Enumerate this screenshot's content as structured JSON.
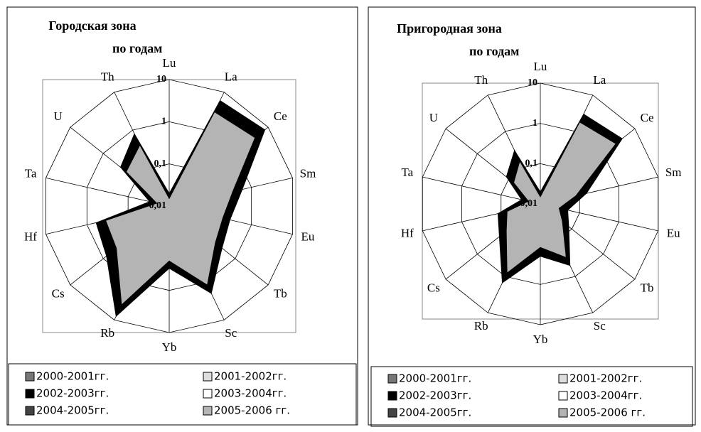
{
  "chart_data": [
    {
      "type": "radar",
      "title": [
        "Городская зона",
        "по годам"
      ],
      "categories": [
        "Lu",
        "La",
        "Ce",
        "Sm",
        "Eu",
        "Tb",
        "Sc",
        "Yb",
        "Rb",
        "Cs",
        "Hf",
        "Ta",
        "U",
        "Th"
      ],
      "log_scale": true,
      "rlim": [
        0.01,
        10
      ],
      "rticks": [
        {
          "value": 0.01,
          "label": "0,01"
        },
        {
          "value": 0.1,
          "label": "0,1"
        },
        1,
        10
      ],
      "series": [
        {
          "name": "2000-2001гг.",
          "color": "#777777",
          "values": [
            0.012,
            2.5,
            3.5,
            0.3,
            0.15,
            0.2,
            1,
            0.15,
            3.5,
            0.35,
            0.3,
            0.015,
            0.15,
            0.35
          ]
        },
        {
          "name": "2001-2002гг.",
          "color": "#dddddd",
          "values": [
            0.012,
            2.8,
            3.8,
            0.32,
            0.18,
            0.22,
            1.1,
            0.18,
            3.8,
            0.38,
            0.32,
            0.018,
            0.18,
            0.38
          ]
        },
        {
          "name": "2002-2003гг.",
          "color": "#000000",
          "values": [
            0.02,
            6,
            8,
            0.6,
            0.3,
            0.4,
            2,
            0.3,
            8,
            0.8,
            0.6,
            0.03,
            0.3,
            0.8
          ]
        },
        {
          "name": "2003-2004гг.",
          "color": "#ffffff",
          "values": [
            0.012,
            2.5,
            3.5,
            0.3,
            0.15,
            0.2,
            1,
            0.15,
            3.5,
            0.35,
            0.3,
            0.015,
            0.15,
            0.35
          ]
        },
        {
          "name": "2004-2005гг.",
          "color": "#444444",
          "values": [
            0.012,
            2.6,
            3.6,
            0.31,
            0.16,
            0.21,
            1.05,
            0.16,
            3.6,
            0.36,
            0.31,
            0.016,
            0.16,
            0.36
          ]
        },
        {
          "name": "2005-2006 гг.",
          "color": "#b4b4b4",
          "values": [
            0.015,
            3,
            4,
            0.35,
            0.2,
            0.25,
            1.2,
            0.2,
            4,
            0.4,
            0.35,
            0.02,
            0.2,
            0.4
          ]
        }
      ]
    },
    {
      "type": "radar",
      "title": [
        "Пригородная зона",
        "по годам"
      ],
      "categories": [
        "Lu",
        "La",
        "Ce",
        "Sm",
        "Eu",
        "Tb",
        "Sc",
        "Yb",
        "Rb",
        "Cs",
        "Hf",
        "Ta",
        "U",
        "Th"
      ],
      "log_scale": true,
      "rlim": [
        0.01,
        10
      ],
      "rticks": [
        {
          "value": 0.01,
          "label": "0,01"
        },
        {
          "value": 0.1,
          "label": "0,1"
        },
        1,
        10
      ],
      "series": [
        {
          "name": "2000-2001гг.",
          "color": "#777777",
          "values": [
            0.014,
            1.6,
            2.2,
            0.07,
            0.028,
            0.045,
            0.27,
            0.11,
            0.7,
            0.11,
            0.065,
            0.018,
            0.065,
            0.13
          ]
        },
        {
          "name": "2001-2002гг.",
          "color": "#dddddd",
          "values": [
            0.014,
            1.6,
            2.2,
            0.07,
            0.028,
            0.045,
            0.27,
            0.11,
            0.7,
            0.11,
            0.065,
            0.018,
            0.065,
            0.13
          ]
        },
        {
          "name": "2002-2003гг.",
          "color": "#000000",
          "values": [
            0.02,
            3,
            4,
            0.15,
            0.05,
            0.08,
            0.5,
            0.2,
            1.5,
            0.2,
            0.12,
            0.03,
            0.12,
            0.3
          ]
        },
        {
          "name": "2003-2004гг.",
          "color": "#ffffff",
          "values": [
            0.014,
            1.6,
            2.2,
            0.07,
            0.028,
            0.045,
            0.27,
            0.11,
            0.7,
            0.11,
            0.065,
            0.018,
            0.065,
            0.13
          ]
        },
        {
          "name": "2004-2005гг.",
          "color": "#444444",
          "values": [
            0.014,
            1.7,
            2.3,
            0.075,
            0.029,
            0.047,
            0.28,
            0.115,
            0.75,
            0.115,
            0.068,
            0.019,
            0.068,
            0.14
          ]
        },
        {
          "name": "2005-2006 гг.",
          "color": "#b4b4b4",
          "values": [
            0.015,
            1.8,
            2.5,
            0.08,
            0.03,
            0.05,
            0.3,
            0.12,
            0.8,
            0.12,
            0.07,
            0.02,
            0.07,
            0.15
          ]
        }
      ]
    }
  ]
}
